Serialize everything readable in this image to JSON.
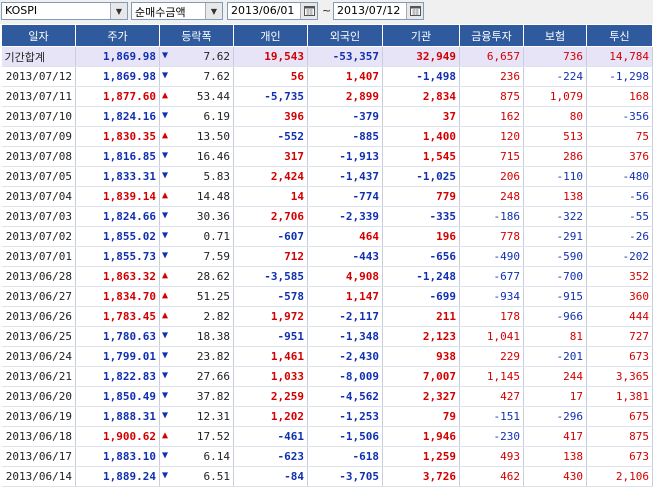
{
  "toolbar": {
    "market_value": "KOSPI",
    "mode_value": "순매수금액",
    "date_from": "2013/06/01",
    "date_to": "2013/07/12",
    "separator": "~"
  },
  "colors": {
    "header_bg": "#2f5b9e",
    "up": "#d40000",
    "down": "#1030b0",
    "total_row_bg": "#e8e4f8"
  },
  "columns": [
    "일자",
    "주가",
    "등락폭",
    "개인",
    "외국인",
    "기관",
    "금융투자",
    "보험",
    "투신"
  ],
  "total": {
    "label": "기간합계",
    "price": "1,869.98",
    "dir": "down",
    "change": "7.62",
    "individual": "19,543",
    "foreign": "-53,357",
    "institution": "32,949",
    "fin_invest": "6,657",
    "insurance": "736",
    "trust": "14,784"
  },
  "rows": [
    {
      "date": "2013/07/12",
      "price": "1,869.98",
      "dir": "down",
      "change": "7.62",
      "individual": "56",
      "foreign": "1,407",
      "institution": "-1,498",
      "fin_invest": "236",
      "insurance": "-224",
      "trust": "-1,298"
    },
    {
      "date": "2013/07/11",
      "price": "1,877.60",
      "dir": "up",
      "change": "53.44",
      "individual": "-5,735",
      "foreign": "2,899",
      "institution": "2,834",
      "fin_invest": "875",
      "insurance": "1,079",
      "trust": "168"
    },
    {
      "date": "2013/07/10",
      "price": "1,824.16",
      "dir": "down",
      "change": "6.19",
      "individual": "396",
      "foreign": "-379",
      "institution": "37",
      "fin_invest": "162",
      "insurance": "80",
      "trust": "-356"
    },
    {
      "date": "2013/07/09",
      "price": "1,830.35",
      "dir": "up",
      "change": "13.50",
      "individual": "-552",
      "foreign": "-885",
      "institution": "1,400",
      "fin_invest": "120",
      "insurance": "513",
      "trust": "75"
    },
    {
      "date": "2013/07/08",
      "price": "1,816.85",
      "dir": "down",
      "change": "16.46",
      "individual": "317",
      "foreign": "-1,913",
      "institution": "1,545",
      "fin_invest": "715",
      "insurance": "286",
      "trust": "376"
    },
    {
      "date": "2013/07/05",
      "price": "1,833.31",
      "dir": "down",
      "change": "5.83",
      "individual": "2,424",
      "foreign": "-1,437",
      "institution": "-1,025",
      "fin_invest": "206",
      "insurance": "-110",
      "trust": "-480"
    },
    {
      "date": "2013/07/04",
      "price": "1,839.14",
      "dir": "up",
      "change": "14.48",
      "individual": "14",
      "foreign": "-774",
      "institution": "779",
      "fin_invest": "248",
      "insurance": "138",
      "trust": "-56"
    },
    {
      "date": "2013/07/03",
      "price": "1,824.66",
      "dir": "down",
      "change": "30.36",
      "individual": "2,706",
      "foreign": "-2,339",
      "institution": "-335",
      "fin_invest": "-186",
      "insurance": "-322",
      "trust": "-55"
    },
    {
      "date": "2013/07/02",
      "price": "1,855.02",
      "dir": "down",
      "change": "0.71",
      "individual": "-607",
      "foreign": "464",
      "institution": "196",
      "fin_invest": "778",
      "insurance": "-291",
      "trust": "-26"
    },
    {
      "date": "2013/07/01",
      "price": "1,855.73",
      "dir": "down",
      "change": "7.59",
      "individual": "712",
      "foreign": "-443",
      "institution": "-656",
      "fin_invest": "-490",
      "insurance": "-590",
      "trust": "-202"
    },
    {
      "date": "2013/06/28",
      "price": "1,863.32",
      "dir": "up",
      "change": "28.62",
      "individual": "-3,585",
      "foreign": "4,908",
      "institution": "-1,248",
      "fin_invest": "-677",
      "insurance": "-700",
      "trust": "352"
    },
    {
      "date": "2013/06/27",
      "price": "1,834.70",
      "dir": "up",
      "change": "51.25",
      "individual": "-578",
      "foreign": "1,147",
      "institution": "-699",
      "fin_invest": "-934",
      "insurance": "-915",
      "trust": "360"
    },
    {
      "date": "2013/06/26",
      "price": "1,783.45",
      "dir": "up",
      "change": "2.82",
      "individual": "1,972",
      "foreign": "-2,117",
      "institution": "211",
      "fin_invest": "178",
      "insurance": "-966",
      "trust": "444"
    },
    {
      "date": "2013/06/25",
      "price": "1,780.63",
      "dir": "down",
      "change": "18.38",
      "individual": "-951",
      "foreign": "-1,348",
      "institution": "2,123",
      "fin_invest": "1,041",
      "insurance": "81",
      "trust": "727"
    },
    {
      "date": "2013/06/24",
      "price": "1,799.01",
      "dir": "down",
      "change": "23.82",
      "individual": "1,461",
      "foreign": "-2,430",
      "institution": "938",
      "fin_invest": "229",
      "insurance": "-201",
      "trust": "673"
    },
    {
      "date": "2013/06/21",
      "price": "1,822.83",
      "dir": "down",
      "change": "27.66",
      "individual": "1,033",
      "foreign": "-8,009",
      "institution": "7,007",
      "fin_invest": "1,145",
      "insurance": "244",
      "trust": "3,365"
    },
    {
      "date": "2013/06/20",
      "price": "1,850.49",
      "dir": "down",
      "change": "37.82",
      "individual": "2,259",
      "foreign": "-4,562",
      "institution": "2,327",
      "fin_invest": "427",
      "insurance": "17",
      "trust": "1,381"
    },
    {
      "date": "2013/06/19",
      "price": "1,888.31",
      "dir": "down",
      "change": "12.31",
      "individual": "1,202",
      "foreign": "-1,253",
      "institution": "79",
      "fin_invest": "-151",
      "insurance": "-296",
      "trust": "675"
    },
    {
      "date": "2013/06/18",
      "price": "1,900.62",
      "dir": "up",
      "change": "17.52",
      "individual": "-461",
      "foreign": "-1,506",
      "institution": "1,946",
      "fin_invest": "-230",
      "insurance": "417",
      "trust": "875"
    },
    {
      "date": "2013/06/17",
      "price": "1,883.10",
      "dir": "down",
      "change": "6.14",
      "individual": "-623",
      "foreign": "-618",
      "institution": "1,259",
      "fin_invest": "493",
      "insurance": "138",
      "trust": "673"
    },
    {
      "date": "2013/06/14",
      "price": "1,889.24",
      "dir": "down",
      "change": "6.51",
      "individual": "-84",
      "foreign": "-3,705",
      "institution": "3,726",
      "fin_invest": "462",
      "insurance": "430",
      "trust": "2,106"
    }
  ]
}
